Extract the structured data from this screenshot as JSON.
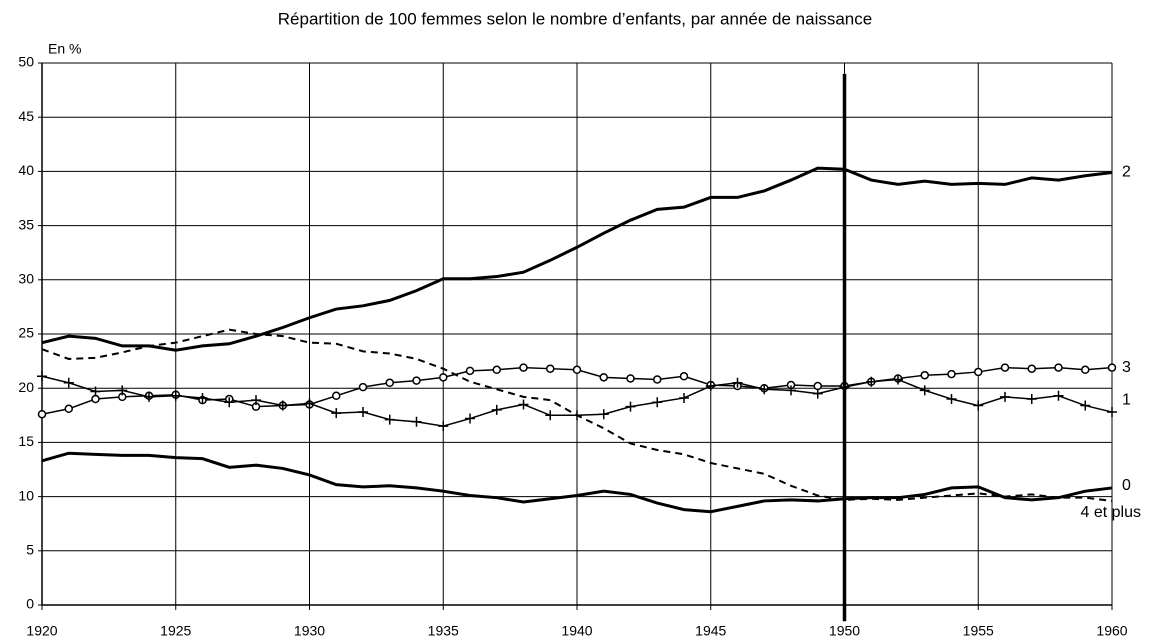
{
  "chart_data": {
    "type": "line",
    "title": "Répartition de 100 femmes selon le nombre d’enfants, par année de naissance",
    "ylabel": "En %",
    "x": [
      1920,
      1921,
      1922,
      1923,
      1924,
      1925,
      1926,
      1927,
      1928,
      1929,
      1930,
      1931,
      1932,
      1933,
      1934,
      1935,
      1936,
      1937,
      1938,
      1939,
      1940,
      1941,
      1942,
      1943,
      1944,
      1945,
      1946,
      1947,
      1948,
      1949,
      1950,
      1951,
      1952,
      1953,
      1954,
      1955,
      1956,
      1957,
      1958,
      1959,
      1960
    ],
    "xlim": [
      1920,
      1960
    ],
    "xticks": [
      1920,
      1925,
      1930,
      1935,
      1940,
      1945,
      1950,
      1955,
      1960
    ],
    "ylim": [
      0,
      50
    ],
    "yticks": [
      0,
      5,
      10,
      15,
      20,
      25,
      30,
      35,
      40,
      45,
      50
    ],
    "grid": true,
    "vline": {
      "x": 1950,
      "y": [
        -1.5,
        49
      ]
    },
    "series": [
      {
        "name": "2",
        "color": "#000000",
        "style": "thick",
        "values": [
          24.2,
          24.8,
          24.6,
          23.9,
          23.9,
          23.5,
          23.9,
          24.1,
          24.8,
          25.6,
          26.5,
          27.3,
          27.6,
          28.1,
          29.0,
          30.1,
          30.1,
          30.3,
          30.7,
          31.8,
          33.0,
          34.3,
          35.5,
          36.5,
          36.7,
          37.6,
          37.6,
          38.2,
          39.2,
          40.3,
          40.2,
          39.2,
          38.8,
          39.1,
          38.8,
          38.9,
          38.8,
          39.4,
          39.2,
          39.6,
          39.9
        ]
      },
      {
        "name": "3",
        "color": "#000000",
        "style": "circle",
        "values": [
          17.6,
          18.1,
          19.0,
          19.2,
          19.3,
          19.4,
          18.9,
          19.0,
          18.3,
          18.4,
          18.5,
          19.3,
          20.1,
          20.5,
          20.7,
          21.0,
          21.6,
          21.7,
          21.9,
          21.8,
          21.7,
          21.0,
          20.9,
          20.8,
          21.1,
          20.3,
          20.2,
          20.0,
          20.3,
          20.2,
          20.2,
          20.6,
          20.9,
          21.2,
          21.3,
          21.5,
          21.9,
          21.8,
          21.9,
          21.7,
          21.9
        ]
      },
      {
        "name": "1",
        "color": "#000000",
        "style": "plus",
        "values": [
          21.1,
          20.5,
          19.7,
          19.8,
          19.2,
          19.3,
          19.1,
          18.7,
          18.9,
          18.4,
          18.6,
          17.7,
          17.8,
          17.1,
          16.9,
          16.5,
          17.2,
          18.0,
          18.5,
          17.5,
          17.5,
          17.6,
          18.3,
          18.7,
          19.1,
          20.2,
          20.5,
          19.9,
          19.8,
          19.5,
          20.1,
          20.6,
          20.8,
          19.8,
          19.0,
          18.4,
          19.2,
          19.0,
          19.3,
          18.4,
          17.8
        ]
      },
      {
        "name": "0",
        "color": "#000000",
        "style": "thick",
        "values": [
          13.3,
          14.0,
          13.9,
          13.8,
          13.8,
          13.6,
          13.5,
          12.7,
          12.9,
          12.6,
          12.0,
          11.1,
          10.9,
          11.0,
          10.8,
          10.5,
          10.1,
          9.9,
          9.5,
          9.8,
          10.1,
          10.5,
          10.2,
          9.4,
          8.8,
          8.6,
          9.1,
          9.6,
          9.7,
          9.6,
          9.8,
          9.9,
          9.9,
          10.2,
          10.8,
          10.9,
          9.9,
          9.7,
          9.9,
          10.5,
          10.8
        ]
      },
      {
        "name": "4 et plus",
        "color": "#000000",
        "style": "dashed",
        "values": [
          23.6,
          22.7,
          22.8,
          23.3,
          23.9,
          24.2,
          24.8,
          25.4,
          25.0,
          24.8,
          24.2,
          24.1,
          23.4,
          23.2,
          22.7,
          21.8,
          20.6,
          19.9,
          19.2,
          18.9,
          17.5,
          16.3,
          14.9,
          14.3,
          13.9,
          13.1,
          12.6,
          12.1,
          11.0,
          10.1,
          9.7,
          9.8,
          9.7,
          9.9,
          10.1,
          10.3,
          10.0,
          10.2,
          9.9,
          9.9,
          9.6
        ]
      }
    ]
  }
}
